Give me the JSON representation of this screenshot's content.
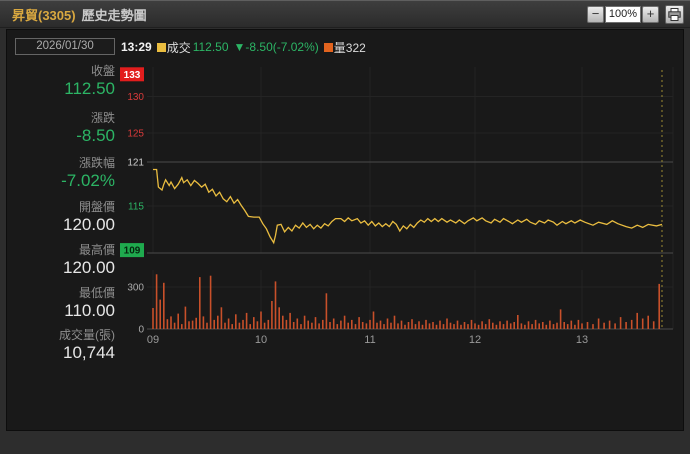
{
  "titlebar": {
    "stock_title": "昇貿(3305)",
    "page_title": "歷史走勢圖",
    "zoom_out_label": "−",
    "zoom_level": "100%",
    "zoom_in_label": "+"
  },
  "sidebar": {
    "date": "2026/01/30",
    "stats": [
      {
        "label": "收盤",
        "value": "112.50",
        "state": "down"
      },
      {
        "label": "漲跌",
        "value": "-8.50",
        "state": "down"
      },
      {
        "label": "漲跌幅",
        "value": "-7.02%",
        "state": "down"
      },
      {
        "label": "開盤價",
        "value": "120.00",
        "state": "flat"
      },
      {
        "label": "最高價",
        "value": "120.00",
        "state": "flat"
      },
      {
        "label": "最低價",
        "value": "110.00",
        "state": "flat"
      },
      {
        "label": "成交量(張)",
        "value": "10,744",
        "state": "flat"
      }
    ]
  },
  "legend": {
    "time": "13:29",
    "trade_label": "成交",
    "trade_value": "112.50",
    "change_value": "▼-8.50(-7.02%)",
    "volume_label": "量322"
  },
  "colors": {
    "price_line": "#eabd40",
    "volume_bar": "#c8502a",
    "cursor": "#9d8c33",
    "up_red": "#e21d1d",
    "down_green": "#1faa4e",
    "up_text": "#d93a3a",
    "down_text": "#2cb565",
    "reference_text": "#cfcfcf",
    "axis_text": "#9a9a9a",
    "grid_faint": "#242424",
    "grid_strong": "#4a4a4a"
  },
  "chart_data": {
    "type": "line",
    "title": "昇貿(3305) 歷史走勢圖 intraday",
    "x_axis": {
      "labels": [
        "09",
        "10",
        "11",
        "12",
        "13"
      ],
      "start_minute": 0,
      "end_minute": 269
    },
    "price_axis": {
      "min": 108.6,
      "max": 134,
      "reference": 121,
      "limit_up": 133,
      "limit_down": 109,
      "ticks": [
        {
          "value": 133,
          "label": "133",
          "type": "limit-up-badge"
        },
        {
          "value": 130,
          "label": "130",
          "type": "up"
        },
        {
          "value": 125,
          "label": "125",
          "type": "up"
        },
        {
          "value": 121,
          "label": "121",
          "type": "reference"
        },
        {
          "value": 115,
          "label": "115",
          "type": "down"
        },
        {
          "value": 109,
          "label": "109",
          "type": "limit-down-badge"
        }
      ]
    },
    "volume_axis": {
      "ticks": [
        300,
        0
      ],
      "max": 421,
      "last_volume": 322
    },
    "cursor": {
      "minute": 269,
      "time": "13:29"
    },
    "price_series": {
      "name": "成交",
      "open": 120.0,
      "high": 120.0,
      "low": 110.0,
      "last": 112.5,
      "points": [
        [
          0,
          120
        ],
        [
          2,
          120
        ],
        [
          3,
          117.6
        ],
        [
          5,
          117.2
        ],
        [
          6,
          118.0
        ],
        [
          7,
          118.6
        ],
        [
          9,
          117.8
        ],
        [
          10,
          118.3
        ],
        [
          12,
          117.4
        ],
        [
          14,
          118.0
        ],
        [
          16,
          118.9
        ],
        [
          17,
          118.2
        ],
        [
          19,
          118.6
        ],
        [
          21,
          117.8
        ],
        [
          23,
          118.5
        ],
        [
          25,
          118.1
        ],
        [
          27,
          117.6
        ],
        [
          29,
          118.0
        ],
        [
          31,
          116.9
        ],
        [
          33,
          117.3
        ],
        [
          35,
          116.4
        ],
        [
          37,
          116.9
        ],
        [
          39,
          116.0
        ],
        [
          41,
          115.6
        ],
        [
          43,
          116.3
        ],
        [
          45,
          115.4
        ],
        [
          47,
          115.9
        ],
        [
          49,
          115.1
        ],
        [
          51,
          114.4
        ],
        [
          53,
          113.6
        ],
        [
          56,
          113.5
        ],
        [
          59,
          113.5
        ],
        [
          61,
          112.6
        ],
        [
          63,
          111.9
        ],
        [
          65,
          110.8
        ],
        [
          67,
          110.0
        ],
        [
          68,
          111.0
        ],
        [
          69,
          112.4
        ],
        [
          71,
          112.5
        ],
        [
          73,
          111.5
        ],
        [
          75,
          112.1
        ],
        [
          77,
          111.6
        ],
        [
          79,
          112.4
        ],
        [
          81,
          112.0
        ],
        [
          83,
          112.7
        ],
        [
          85,
          112.1
        ],
        [
          87,
          112.5
        ],
        [
          89,
          111.9
        ],
        [
          91,
          112.4
        ],
        [
          93,
          112.0
        ],
        [
          95,
          112.6
        ],
        [
          97,
          112.3
        ],
        [
          99,
          112.9
        ],
        [
          101,
          113.3
        ],
        [
          104,
          113.3
        ],
        [
          106,
          112.9
        ],
        [
          108,
          113.4
        ],
        [
          110,
          113.0
        ],
        [
          113,
          113.3
        ],
        [
          115,
          112.7
        ],
        [
          117,
          113.0
        ],
        [
          119,
          112.4
        ],
        [
          121,
          112.9
        ],
        [
          123,
          112.3
        ],
        [
          125,
          112.7
        ],
        [
          127,
          112.2
        ],
        [
          129,
          112.6
        ],
        [
          131,
          112.2
        ],
        [
          133,
          112.9
        ],
        [
          135,
          112.5
        ],
        [
          137,
          111.6
        ],
        [
          139,
          112.3
        ],
        [
          141,
          111.9
        ],
        [
          143,
          112.5
        ],
        [
          145,
          112.1
        ],
        [
          147,
          112.7
        ],
        [
          149,
          113.1
        ],
        [
          151,
          112.8
        ],
        [
          153,
          113.3
        ],
        [
          155,
          112.9
        ],
        [
          157,
          113.3
        ],
        [
          159,
          112.9
        ],
        [
          161,
          113.3
        ],
        [
          164,
          112.8
        ],
        [
          166,
          113.1
        ],
        [
          169,
          112.7
        ],
        [
          171,
          113.1
        ],
        [
          174,
          112.6
        ],
        [
          176,
          113.0
        ],
        [
          179,
          113.4
        ],
        [
          181,
          113.0
        ],
        [
          184,
          113.4
        ],
        [
          186,
          113.0
        ],
        [
          189,
          112.7
        ],
        [
          191,
          113.2
        ],
        [
          194,
          112.8
        ],
        [
          196,
          113.3
        ],
        [
          199,
          112.9
        ],
        [
          201,
          112.6
        ],
        [
          204,
          113.1
        ],
        [
          206,
          112.8
        ],
        [
          209,
          113.2
        ],
        [
          211,
          112.8
        ],
        [
          214,
          112.5
        ],
        [
          216,
          113.0
        ],
        [
          219,
          112.7
        ],
        [
          221,
          113.1
        ],
        [
          224,
          112.8
        ],
        [
          226,
          112.4
        ],
        [
          229,
          112.9
        ],
        [
          231,
          112.6
        ],
        [
          234,
          113.0
        ],
        [
          236,
          112.7
        ],
        [
          239,
          113.1
        ],
        [
          241,
          112.8
        ],
        [
          244,
          112.4
        ],
        [
          246,
          112.8
        ],
        [
          249,
          112.5
        ],
        [
          251,
          113.0
        ],
        [
          253,
          112.6
        ],
        [
          256,
          112.2
        ],
        [
          258,
          112.0
        ],
        [
          260,
          112.4
        ],
        [
          262,
          112.1
        ],
        [
          264,
          112.5
        ],
        [
          267,
          112.3
        ],
        [
          269,
          112.5
        ]
      ]
    },
    "volume_series": {
      "name": "量",
      "step_minutes": 2,
      "total": 10744,
      "values": [
        150,
        390,
        210,
        330,
        70,
        90,
        45,
        110,
        35,
        160,
        55,
        60,
        80,
        370,
        90,
        45,
        380,
        65,
        95,
        155,
        45,
        75,
        35,
        105,
        45,
        65,
        115,
        35,
        85,
        55,
        125,
        45,
        65,
        200,
        340,
        155,
        95,
        65,
        115,
        50,
        75,
        35,
        95,
        60,
        45,
        85,
        40,
        65,
        255,
        50,
        75,
        35,
        60,
        95,
        45,
        65,
        35,
        85,
        50,
        40,
        65,
        125,
        45,
        60,
        35,
        75,
        45,
        95,
        40,
        60,
        30,
        50,
        70,
        35,
        55,
        30,
        65,
        40,
        50,
        30,
        60,
        35,
        75,
        45,
        35,
        60,
        30,
        50,
        35,
        65,
        40,
        30,
        55,
        35,
        70,
        45,
        30,
        55,
        35,
        60,
        40,
        50,
        100,
        40,
        30,
        55,
        35,
        65,
        40,
        50,
        30,
        60,
        35,
        45,
        140,
        50,
        35,
        60,
        30,
        65,
        40,
        50,
        35,
        75,
        45,
        60,
        40,
        85,
        50,
        65,
        115,
        75,
        95,
        55,
        322
      ]
    }
  }
}
